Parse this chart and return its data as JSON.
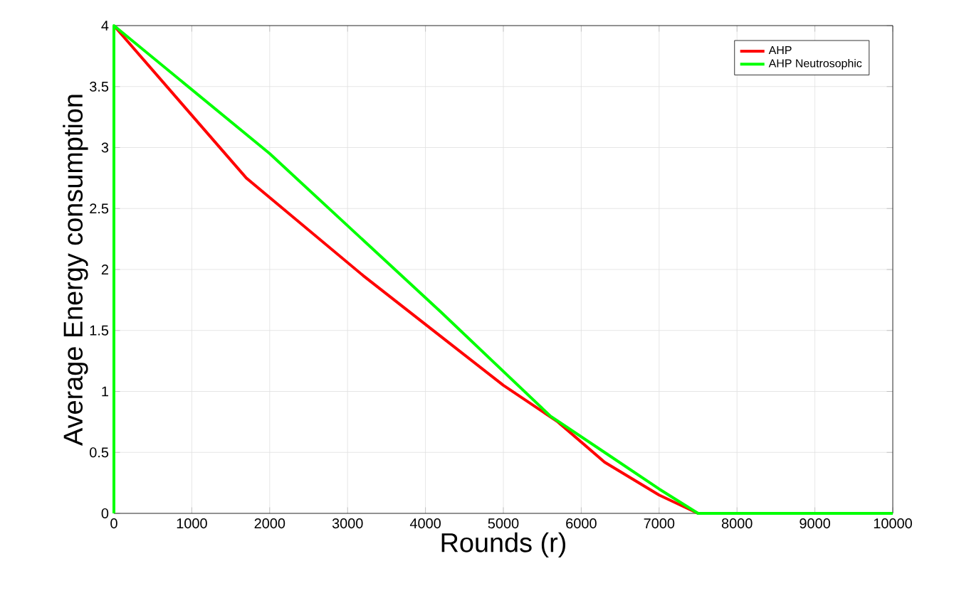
{
  "chart_data": {
    "type": "line",
    "xlabel": "Rounds (r)",
    "ylabel": "Average Energy consumption",
    "xlim": [
      0,
      10000
    ],
    "ylim": [
      0,
      4
    ],
    "xticks": [
      0,
      1000,
      2000,
      3000,
      4000,
      5000,
      6000,
      7000,
      8000,
      9000,
      10000
    ],
    "yticks": [
      0,
      0.5,
      1,
      1.5,
      2,
      2.5,
      3,
      3.5,
      4
    ],
    "grid": true,
    "legend": "top right",
    "marker": "none",
    "line_style": "solid",
    "series": [
      {
        "name": "AHP",
        "color": "#ff0000",
        "x": [
          0,
          1700,
          3200,
          4200,
          5000,
          5700,
          6300,
          7000,
          7500,
          10000
        ],
        "values": [
          4,
          2.75,
          1.95,
          1.45,
          1.05,
          0.75,
          0.42,
          0.15,
          0,
          0
        ]
      },
      {
        "name": "AHP Neutrosophic",
        "color": "#00ff00",
        "x": [
          0,
          0,
          2000,
          4200,
          5600,
          6300,
          7000,
          7500,
          10000
        ],
        "values": [
          0,
          4,
          2.95,
          1.65,
          0.8,
          0.5,
          0.2,
          0,
          0
        ]
      }
    ]
  }
}
